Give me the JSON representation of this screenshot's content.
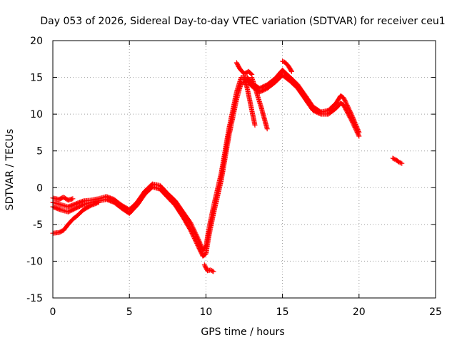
{
  "chart_data": {
    "type": "scatter",
    "title": "Day 053 of 2026, Sidereal Day-to-day VTEC variation (SDTVAR) for receiver ceu1",
    "xlabel": "GPS time / hours",
    "ylabel": "SDTVAR / TECUs",
    "xlim": [
      0,
      25
    ],
    "ylim": [
      -15,
      20
    ],
    "xticks": [
      0,
      5,
      10,
      15,
      20,
      25
    ],
    "yticks": [
      -15,
      -10,
      -5,
      0,
      5,
      10,
      15,
      20
    ],
    "grid": true,
    "marker": "+",
    "series": [
      {
        "name": "SDTVAR",
        "color": "#ff0000",
        "tracks": [
          [
            [
              0.0,
              -2.0
            ],
            [
              0.5,
              -2.3
            ],
            [
              1.0,
              -2.6
            ],
            [
              1.5,
              -2.2
            ],
            [
              2.0,
              -1.8
            ],
            [
              2.5,
              -1.7
            ],
            [
              3.0,
              -1.5
            ],
            [
              3.5,
              -1.2
            ],
            [
              4.0,
              -1.6
            ],
            [
              4.5,
              -2.4
            ],
            [
              5.0,
              -3.0
            ],
            [
              5.5,
              -2.0
            ],
            [
              6.0,
              -0.5
            ],
            [
              6.5,
              0.5
            ],
            [
              7.0,
              0.3
            ],
            [
              7.5,
              -0.8
            ],
            [
              8.0,
              -1.8
            ],
            [
              8.5,
              -3.3
            ],
            [
              9.0,
              -4.8
            ],
            [
              9.5,
              -7.0
            ],
            [
              9.8,
              -8.5
            ],
            [
              10.0,
              -8.0
            ],
            [
              10.2,
              -5.5
            ],
            [
              10.5,
              -2.5
            ],
            [
              11.0,
              2.0
            ],
            [
              11.5,
              8.0
            ],
            [
              12.0,
              13.0
            ],
            [
              12.3,
              15.0
            ],
            [
              12.7,
              15.0
            ],
            [
              13.0,
              14.2
            ],
            [
              13.5,
              13.5
            ],
            [
              14.0,
              14.0
            ],
            [
              14.5,
              14.8
            ],
            [
              15.0,
              16.0
            ],
            [
              15.5,
              15.0
            ],
            [
              16.0,
              14.0
            ],
            [
              16.5,
              12.5
            ],
            [
              17.0,
              11.0
            ],
            [
              17.5,
              10.3
            ],
            [
              18.0,
              10.5
            ],
            [
              18.5,
              11.5
            ],
            [
              18.8,
              12.5
            ],
            [
              19.0,
              12.2
            ],
            [
              19.5,
              10.0
            ],
            [
              20.0,
              7.5
            ]
          ],
          [
            [
              0.0,
              -2.6
            ],
            [
              0.5,
              -3.0
            ],
            [
              1.0,
              -3.3
            ],
            [
              1.5,
              -2.8
            ],
            [
              2.0,
              -2.3
            ],
            [
              2.5,
              -2.0
            ],
            [
              3.0,
              -1.8
            ],
            [
              3.5,
              -1.6
            ],
            [
              4.0,
              -2.0
            ],
            [
              4.5,
              -2.8
            ],
            [
              5.0,
              -3.5
            ],
            [
              5.5,
              -2.4
            ],
            [
              6.0,
              -0.9
            ],
            [
              6.5,
              0.1
            ],
            [
              7.0,
              -0.2
            ],
            [
              7.5,
              -1.3
            ],
            [
              8.0,
              -2.4
            ],
            [
              8.5,
              -4.0
            ],
            [
              9.0,
              -5.8
            ],
            [
              9.5,
              -8.0
            ],
            [
              9.8,
              -9.3
            ],
            [
              10.0,
              -9.0
            ],
            [
              10.2,
              -6.5
            ],
            [
              10.5,
              -3.5
            ],
            [
              11.0,
              1.0
            ],
            [
              11.5,
              7.0
            ],
            [
              12.0,
              12.0
            ],
            [
              12.3,
              14.2
            ],
            [
              12.7,
              14.5
            ],
            [
              13.0,
              13.8
            ],
            [
              13.5,
              13.0
            ],
            [
              14.0,
              13.5
            ],
            [
              14.5,
              14.3
            ],
            [
              15.0,
              15.3
            ],
            [
              15.5,
              14.5
            ],
            [
              16.0,
              13.5
            ],
            [
              16.5,
              12.0
            ],
            [
              17.0,
              10.5
            ],
            [
              17.5,
              10.0
            ],
            [
              18.0,
              10.0
            ],
            [
              18.5,
              10.8
            ],
            [
              18.8,
              11.5
            ],
            [
              19.0,
              11.2
            ],
            [
              19.5,
              9.2
            ],
            [
              20.0,
              7.0
            ]
          ],
          [
            [
              0.0,
              -6.2
            ],
            [
              0.4,
              -6.1
            ],
            [
              0.7,
              -5.8
            ],
            [
              1.0,
              -5.0
            ],
            [
              1.3,
              -4.3
            ],
            [
              1.6,
              -3.8
            ],
            [
              2.0,
              -3.0
            ],
            [
              2.5,
              -2.4
            ],
            [
              3.0,
              -2.0
            ]
          ],
          [
            [
              0.0,
              -1.4
            ],
            [
              0.4,
              -1.6
            ],
            [
              0.7,
              -1.3
            ],
            [
              1.0,
              -1.7
            ],
            [
              1.3,
              -1.5
            ]
          ],
          [
            [
              9.9,
              -10.5
            ],
            [
              10.1,
              -11.3
            ],
            [
              10.3,
              -11.2
            ],
            [
              10.5,
              -11.4
            ]
          ],
          [
            [
              12.0,
              17.0
            ],
            [
              12.2,
              16.2
            ],
            [
              12.5,
              15.5
            ],
            [
              12.8,
              15.8
            ],
            [
              13.0,
              15.4
            ]
          ],
          [
            [
              12.5,
              15.0
            ],
            [
              12.7,
              13.5
            ],
            [
              12.9,
              11.5
            ],
            [
              13.1,
              9.5
            ],
            [
              13.2,
              8.5
            ]
          ],
          [
            [
              13.0,
              15.0
            ],
            [
              13.3,
              13.0
            ],
            [
              13.6,
              11.0
            ],
            [
              13.8,
              9.5
            ],
            [
              14.0,
              8.0
            ]
          ],
          [
            [
              15.0,
              17.2
            ],
            [
              15.2,
              17.0
            ],
            [
              15.4,
              16.5
            ],
            [
              15.6,
              15.8
            ]
          ],
          [
            [
              22.2,
              4.0
            ],
            [
              22.4,
              3.8
            ],
            [
              22.6,
              3.5
            ],
            [
              22.8,
              3.3
            ]
          ]
        ]
      }
    ]
  }
}
